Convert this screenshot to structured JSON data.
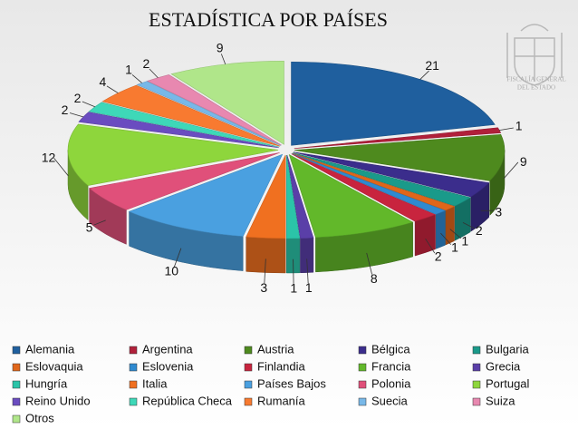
{
  "chart_data": {
    "type": "pie3d",
    "title": "ESTADÍSTICA POR PAÍSES",
    "logo_text": [
      "FISCALÍA GENERAL",
      "DEL ESTADO"
    ],
    "categories": [
      "Alemania",
      "Argentina",
      "Austria",
      "Bélgica",
      "Bulgaria",
      "Eslovaquia",
      "Eslovenia",
      "Finlandia",
      "Francia",
      "Grecia",
      "Hungría",
      "Italia",
      "Países Bajos",
      "Polonia",
      "Portugal",
      "Reino Unido",
      "República Checa",
      "Rumanía",
      "Suecia",
      "Suiza",
      "Otros"
    ],
    "values": [
      21,
      1,
      9,
      3,
      2,
      1,
      1,
      2,
      8,
      1,
      1,
      3,
      10,
      5,
      12,
      2,
      2,
      4,
      1,
      2,
      9
    ],
    "colors": [
      "#1f5f9e",
      "#b0203a",
      "#4e8a1e",
      "#3b2d8c",
      "#1a9a8a",
      "#e0661a",
      "#2f8ad0",
      "#c8243e",
      "#62b82a",
      "#5a3fa8",
      "#2bc4a8",
      "#f07020",
      "#4aa0e0",
      "#e0507a",
      "#8ed63c",
      "#6a4cc0",
      "#3ed8b8",
      "#f87a30",
      "#78b8e8",
      "#e888b0",
      "#b0e68a"
    ],
    "legend": "bottom"
  }
}
